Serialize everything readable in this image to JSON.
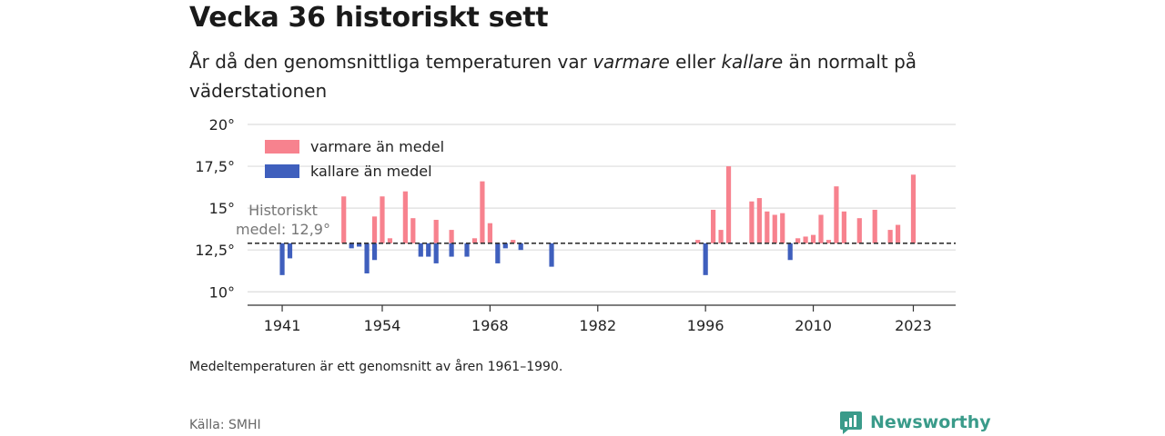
{
  "header": {
    "title": "Vecka 36 historiskt sett",
    "subtitle_pre": "År då den genomsnittliga temperaturen var ",
    "subtitle_warm": "varmare",
    "subtitle_mid": " eller ",
    "subtitle_cold": "kallare",
    "subtitle_post": " än normalt på väderstationen"
  },
  "footer": {
    "note": "Medeltemperaturen är ett genomsnitt av åren 1961–1990.",
    "source": "Källa: SMHI",
    "brand": "Newsworthy"
  },
  "colors": {
    "warm": "#f7828e",
    "cold": "#3f5fbd",
    "grid": "#dddddd",
    "brand": "#3a9b8a"
  },
  "chart_data": {
    "type": "bar",
    "baseline": 12.9,
    "baseline_label_1": "Historiskt",
    "baseline_label_2": "medel: 12,9°",
    "ylim": [
      9.2,
      20
    ],
    "yticks": [
      10,
      12.5,
      15,
      17.5,
      20
    ],
    "ytick_labels": [
      "10°",
      "12,5°",
      "15°",
      "17,5°",
      "20°"
    ],
    "xlim": [
      1936.5,
      2028.5
    ],
    "xticks": [
      1941,
      1954,
      1968,
      1982,
      1996,
      2010,
      2023
    ],
    "xtick_labels": [
      "1941",
      "1954",
      "1968",
      "1982",
      "1996",
      "2010",
      "2023"
    ],
    "legend": [
      "varmare än medel",
      "kallare än medel"
    ],
    "legend_position": "top-left",
    "series": [
      {
        "name": "varmare än medel",
        "points": [
          [
            1949,
            15.7
          ],
          [
            1953,
            14.5
          ],
          [
            1954,
            15.7
          ],
          [
            1955,
            13.2
          ],
          [
            1957,
            16.0
          ],
          [
            1958,
            14.4
          ],
          [
            1961,
            14.3
          ],
          [
            1963,
            13.7
          ],
          [
            1966,
            13.2
          ],
          [
            1967,
            16.6
          ],
          [
            1968,
            14.1
          ],
          [
            1971,
            13.1
          ],
          [
            1995,
            13.1
          ],
          [
            1997,
            14.9
          ],
          [
            1998,
            13.7
          ],
          [
            1999,
            17.5
          ],
          [
            2002,
            15.4
          ],
          [
            2003,
            15.6
          ],
          [
            2004,
            14.8
          ],
          [
            2005,
            14.6
          ],
          [
            2006,
            14.7
          ],
          [
            2008,
            13.2
          ],
          [
            2009,
            13.3
          ],
          [
            2010,
            13.4
          ],
          [
            2011,
            14.6
          ],
          [
            2012,
            13.1
          ],
          [
            2013,
            16.3
          ],
          [
            2014,
            14.8
          ],
          [
            2016,
            14.4
          ],
          [
            2018,
            14.9
          ],
          [
            2020,
            13.7
          ],
          [
            2021,
            14.0
          ],
          [
            2023,
            17.0
          ]
        ]
      },
      {
        "name": "kallare än medel",
        "points": [
          [
            1941,
            11.0
          ],
          [
            1942,
            12.0
          ],
          [
            1950,
            12.6
          ],
          [
            1951,
            12.7
          ],
          [
            1952,
            11.1
          ],
          [
            1953,
            11.9
          ],
          [
            1959,
            12.1
          ],
          [
            1960,
            12.1
          ],
          [
            1961,
            11.7
          ],
          [
            1963,
            12.1
          ],
          [
            1965,
            12.1
          ],
          [
            1969,
            11.7
          ],
          [
            1970,
            12.6
          ],
          [
            1972,
            12.5
          ],
          [
            1976,
            11.5
          ],
          [
            1996,
            11.0
          ],
          [
            2007,
            11.9
          ]
        ]
      }
    ]
  }
}
